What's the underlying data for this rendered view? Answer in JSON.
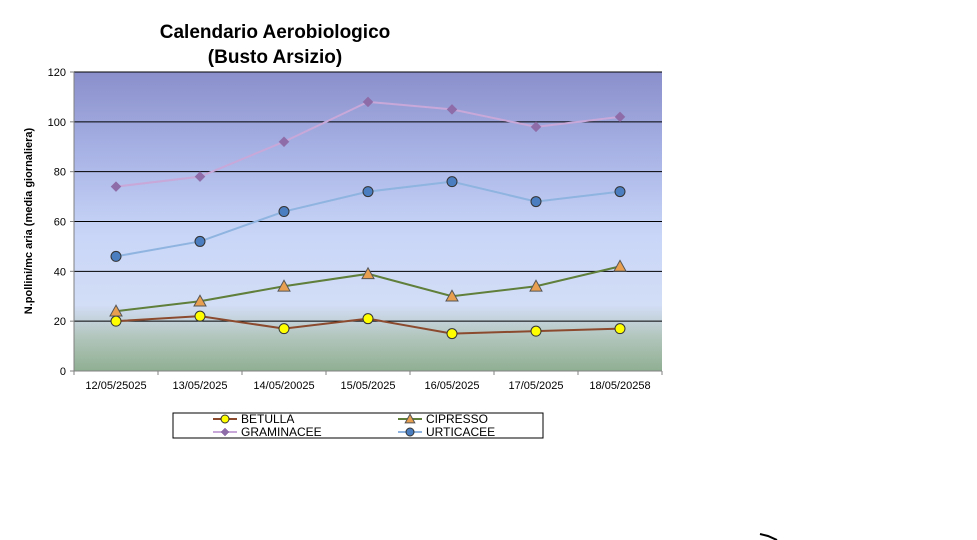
{
  "chart_data": {
    "type": "line",
    "title_line1": "Calendario Aerobiologico",
    "title_line2": "(Busto Arsizio)",
    "xlabel": "",
    "ylabel": "N.pollini/mc aria (media giornaliera)",
    "ylim": [
      0,
      120
    ],
    "yticks": [
      0,
      20,
      40,
      60,
      80,
      100,
      120
    ],
    "grid": true,
    "legend_position": "bottom",
    "categories": [
      "12/05/25025",
      "13/05/2025",
      "14/05/20025",
      "15/05/2025",
      "16/05/2025",
      "17/05/2025",
      "18/05/20258"
    ],
    "series": [
      {
        "name": "BETULLA",
        "marker": "circle",
        "line_color": "#8B4A2E",
        "marker_fill": "#FFFF00",
        "values": [
          20,
          22,
          17,
          21,
          15,
          16,
          17
        ]
      },
      {
        "name": "CIPRESSO",
        "marker": "triangle",
        "line_color": "#5F7F3A",
        "marker_fill": "#E8A050",
        "values": [
          24,
          28,
          34,
          39,
          30,
          34,
          42
        ]
      },
      {
        "name": "GRAMINACEE",
        "marker": "diamond",
        "line_color": "#C8A8D8",
        "marker_fill": "#8E6CA8",
        "values": [
          74,
          78,
          92,
          108,
          105,
          98,
          102
        ]
      },
      {
        "name": "URTICACEE",
        "marker": "circle",
        "line_color": "#8FB4E0",
        "marker_fill": "#4A7EC0",
        "values": [
          46,
          52,
          64,
          72,
          76,
          68,
          72
        ]
      }
    ]
  }
}
